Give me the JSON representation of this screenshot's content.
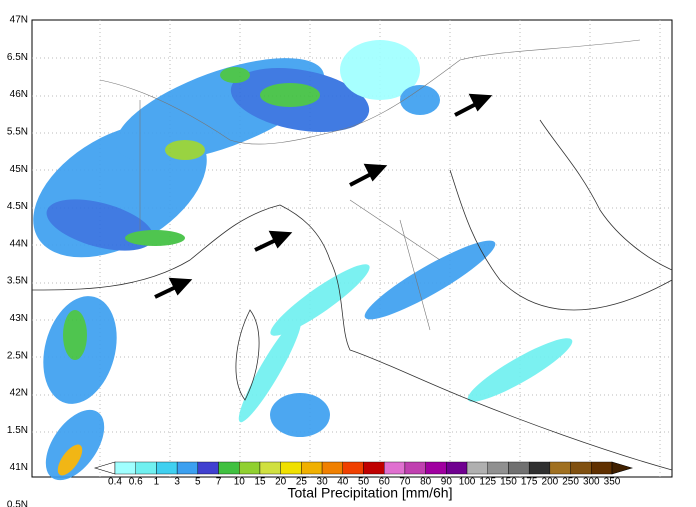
{
  "latitude_labels": [
    "47N",
    "6.5N",
    "46N",
    "5.5N",
    "45N",
    "4.5N",
    "44N",
    "3.5N",
    "43N",
    "2.5N",
    "42N",
    "1.5N",
    "41N",
    "0.5N"
  ],
  "colorbar": {
    "title": "Total Precipitation [mm/6h]",
    "labels": [
      "0.4",
      "0.6",
      "1",
      "3",
      "5",
      "7",
      "10",
      "15",
      "20",
      "25",
      "30",
      "40",
      "50",
      "60",
      "70",
      "80",
      "90",
      "100",
      "125",
      "150",
      "175",
      "200",
      "250",
      "300",
      "350"
    ],
    "colors": [
      "#ffffff",
      "#a0ffff",
      "#70f0f0",
      "#40d0f0",
      "#3ca0f0",
      "#3070e0",
      "#4040d0",
      "#40c040",
      "#90d030",
      "#d0e040",
      "#f0e000",
      "#f0b000",
      "#f08000",
      "#f04000",
      "#e00000",
      "#c00000",
      "#e070d0",
      "#c040b0",
      "#a000a0",
      "#700090",
      "#b0b0b0",
      "#909090",
      "#707070",
      "#505050",
      "#303030",
      "#a07020",
      "#805010",
      "#603000",
      "#402000"
    ]
  }
}
